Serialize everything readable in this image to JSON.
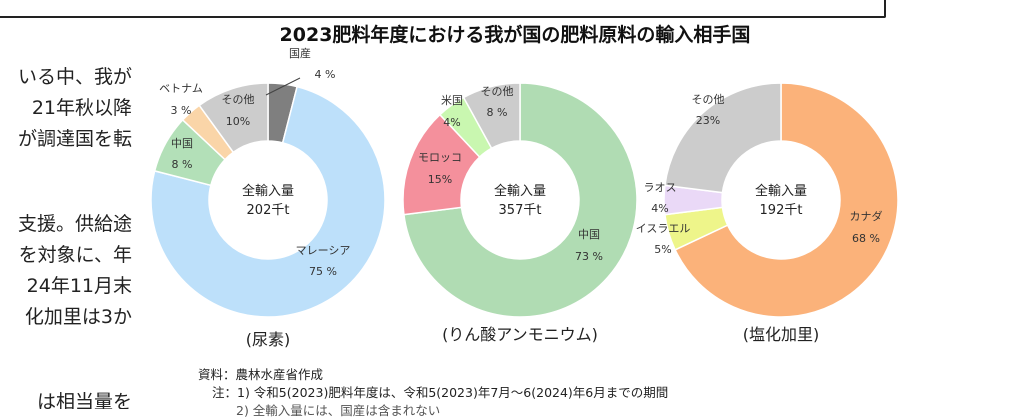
{
  "background_text": {
    "lines": [
      "いる中、我が",
      "21年秋以降",
      "が調達国を転",
      "支援。供給途",
      "を対象に、年",
      "24年11月末",
      "化加里は3か",
      "は相当量を"
    ]
  },
  "chart_data": [
    {
      "type": "pie",
      "title": "2023肥料年度における我が国の肥料原料の輸入相手国",
      "caption": "(尿素)",
      "center_label": "全輸入量",
      "center_value": "202千t",
      "slices": [
        {
          "label": "国産",
          "value": 4,
          "value_text": "4 %",
          "color": "#7f7f7f"
        },
        {
          "label": "マレーシア",
          "value": 75,
          "value_text": "75 %",
          "color": "#bde0fa"
        },
        {
          "label": "中国",
          "value": 8,
          "value_text": "8 %",
          "color": "#b3e0b8"
        },
        {
          "label": "ベトナム",
          "value": 3,
          "value_text": "3 %",
          "color": "#fad5a8"
        },
        {
          "label": "その他",
          "value": 10,
          "value_text": "10%",
          "color": "#cccccc"
        }
      ]
    },
    {
      "type": "pie",
      "caption": "(りん酸アンモニウム)",
      "center_label": "全輸入量",
      "center_value": "357千t",
      "slices": [
        {
          "label": "中国",
          "value": 73,
          "value_text": "73 %",
          "color": "#b0dcb3"
        },
        {
          "label": "モロッコ",
          "value": 15,
          "value_text": "15%",
          "color": "#f4909c"
        },
        {
          "label": "米国",
          "value": 4,
          "value_text": "4%",
          "color": "#c9f7b0"
        },
        {
          "label": "その他",
          "value": 8,
          "value_text": "8 %",
          "color": "#cccccc"
        }
      ]
    },
    {
      "type": "pie",
      "caption": "(塩化加里)",
      "center_label": "全輸入量",
      "center_value": "192千t",
      "slices": [
        {
          "label": "カナダ",
          "value": 68,
          "value_text": "68 %",
          "color": "#fbb27a"
        },
        {
          "label": "イスラエル",
          "value": 5,
          "value_text": "5%",
          "color": "#eef58a"
        },
        {
          "label": "ラオス",
          "value": 4,
          "value_text": "4%",
          "color": "#ead9f7"
        },
        {
          "label": "その他",
          "value": 23,
          "value_text": "23%",
          "color": "#cccccc"
        }
      ]
    }
  ],
  "notes": {
    "source": "資料：農林水産省作成",
    "note1": "注：1) 令和5(2023)肥料年度は、令和5(2023)年7月～6(2024)年6月までの期間",
    "note2": "2) 全輸入量には、国産は含まれない"
  }
}
